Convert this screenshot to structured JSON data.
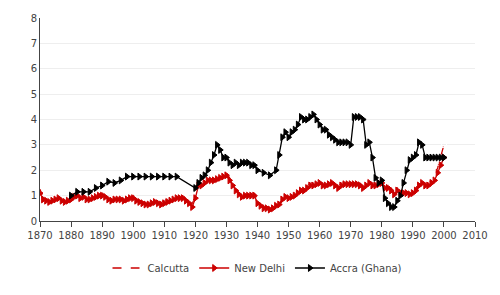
{
  "chart_data": {
    "type": "line",
    "series": [
      {
        "name": "Calcutta",
        "color": "#cc0000",
        "marker": "square-open",
        "line_style": "dash",
        "x": [
          1870,
          1871,
          1872,
          1873,
          1874,
          1875,
          1876,
          1877,
          1878,
          1879,
          1880,
          1881,
          1882,
          1883,
          1884,
          1885,
          1886,
          1887,
          1888,
          1889,
          1890,
          1891,
          1892,
          1893,
          1894,
          1895,
          1896,
          1897,
          1898,
          1899,
          1900,
          1901,
          1902,
          1903,
          1904,
          1905,
          1906,
          1907,
          1908,
          1909,
          1910,
          1911,
          1912,
          1913,
          1914,
          1915,
          1916,
          1917,
          1918,
          1919,
          1920,
          1921,
          1922,
          1923,
          1924,
          1925,
          1926,
          1927,
          1928,
          1929,
          1930,
          1931,
          1932,
          1933,
          1934,
          1935,
          1936,
          1937,
          1938,
          1939,
          1940,
          1941,
          1942,
          1943,
          1944,
          1945,
          1946,
          1947,
          1948,
          1949,
          1950,
          1951,
          1952,
          1953,
          1954,
          1955,
          1956,
          1957,
          1958,
          1959,
          1960,
          1961,
          1962,
          1963,
          1964,
          1965,
          1966,
          1967,
          1968,
          1969,
          1970,
          1971,
          1972,
          1973,
          1974,
          1975,
          1976,
          1977,
          1978,
          1979,
          1980,
          1981,
          1982,
          1983,
          1984,
          1985,
          1986,
          1987,
          1988,
          1989,
          1990,
          1991,
          1992,
          1993,
          1994,
          1995,
          1996,
          1997,
          1998,
          1999,
          2000
        ],
        "values": [
          1.25,
          0.9,
          0.85,
          0.8,
          0.85,
          0.9,
          0.95,
          0.85,
          0.8,
          0.85,
          0.9,
          1.0,
          1.05,
          0.95,
          1.0,
          0.85,
          0.9,
          1.0,
          0.95,
          1.05,
          1.1,
          1.0,
          0.95,
          0.85,
          0.9,
          0.9,
          0.95,
          0.85,
          0.9,
          0.95,
          1.0,
          0.85,
          0.85,
          0.8,
          0.7,
          0.75,
          0.8,
          0.85,
          0.8,
          0.75,
          0.8,
          0.85,
          0.9,
          0.95,
          1.0,
          1.0,
          1.0,
          0.9,
          0.8,
          0.7,
          1.0,
          1.5,
          1.5,
          1.6,
          1.7,
          1.7,
          1.7,
          1.7,
          1.75,
          1.8,
          1.9,
          1.7,
          1.5,
          1.3,
          1.1,
          1.0,
          1.1,
          1.1,
          1.1,
          1.1,
          0.85,
          0.75,
          0.6,
          0.55,
          0.5,
          0.55,
          0.65,
          0.7,
          0.9,
          1.0,
          1.0,
          1.0,
          1.1,
          1.2,
          1.3,
          1.3,
          1.4,
          1.5,
          1.5,
          1.55,
          1.6,
          1.5,
          1.5,
          1.5,
          1.5,
          1.5,
          1.4,
          1.5,
          1.5,
          1.5,
          1.5,
          1.5,
          1.55,
          1.5,
          1.4,
          1.5,
          1.6,
          1.5,
          1.5,
          1.55,
          1.6,
          1.4,
          1.4,
          1.3,
          1.1,
          1.3,
          1.2,
          1.2,
          1.2,
          1.1,
          1.2,
          1.3,
          1.5,
          1.6,
          1.5,
          1.5,
          1.6,
          1.7,
          2.1,
          2.5,
          3.0
        ]
      },
      {
        "name": "New Delhi",
        "color": "#cc0000",
        "marker": "triangle-right",
        "line_style": "solid",
        "x": [
          1870,
          1871,
          1872,
          1873,
          1874,
          1875,
          1876,
          1877,
          1878,
          1879,
          1880,
          1881,
          1882,
          1883,
          1884,
          1885,
          1886,
          1887,
          1888,
          1889,
          1890,
          1891,
          1892,
          1893,
          1894,
          1895,
          1896,
          1897,
          1898,
          1899,
          1900,
          1901,
          1902,
          1903,
          1904,
          1905,
          1906,
          1907,
          1908,
          1909,
          1910,
          1911,
          1912,
          1913,
          1914,
          1915,
          1916,
          1917,
          1918,
          1919,
          1920,
          1921,
          1922,
          1923,
          1924,
          1925,
          1926,
          1927,
          1928,
          1929,
          1930,
          1931,
          1932,
          1933,
          1934,
          1935,
          1936,
          1937,
          1938,
          1939,
          1940,
          1941,
          1942,
          1943,
          1944,
          1945,
          1946,
          1947,
          1948,
          1949,
          1950,
          1951,
          1952,
          1953,
          1954,
          1955,
          1956,
          1957,
          1958,
          1959,
          1960,
          1961,
          1962,
          1963,
          1964,
          1965,
          1966,
          1967,
          1968,
          1969,
          1970,
          1971,
          1972,
          1973,
          1974,
          1975,
          1976,
          1977,
          1978,
          1979,
          1980,
          1981,
          1982,
          1983,
          1984,
          1985,
          1986,
          1987,
          1988,
          1989,
          1990,
          1991,
          1992,
          1993,
          1994,
          1995,
          1996,
          1997,
          1998,
          1999,
          2000
        ],
        "values": [
          1.1,
          0.85,
          0.8,
          0.75,
          0.8,
          0.85,
          0.9,
          0.8,
          0.75,
          0.8,
          0.85,
          0.95,
          1.0,
          0.9,
          0.95,
          0.85,
          0.85,
          0.9,
          0.95,
          1.0,
          1.0,
          0.95,
          0.85,
          0.8,
          0.85,
          0.85,
          0.85,
          0.8,
          0.85,
          0.9,
          0.9,
          0.8,
          0.75,
          0.7,
          0.65,
          0.65,
          0.7,
          0.75,
          0.7,
          0.65,
          0.7,
          0.75,
          0.8,
          0.85,
          0.9,
          0.9,
          0.9,
          0.8,
          0.7,
          0.55,
          0.9,
          1.4,
          1.4,
          1.5,
          1.6,
          1.6,
          1.6,
          1.65,
          1.7,
          1.75,
          1.8,
          1.6,
          1.4,
          1.2,
          1.05,
          0.95,
          1.0,
          1.0,
          1.0,
          1.0,
          0.7,
          0.6,
          0.5,
          0.5,
          0.45,
          0.5,
          0.6,
          0.65,
          0.85,
          0.95,
          0.9,
          0.95,
          1.0,
          1.1,
          1.2,
          1.2,
          1.3,
          1.4,
          1.4,
          1.45,
          1.5,
          1.4,
          1.4,
          1.45,
          1.5,
          1.4,
          1.3,
          1.4,
          1.45,
          1.45,
          1.45,
          1.45,
          1.45,
          1.4,
          1.3,
          1.4,
          1.5,
          1.4,
          1.4,
          1.45,
          1.5,
          1.3,
          1.3,
          1.2,
          1.05,
          1.2,
          1.1,
          1.1,
          1.1,
          1.05,
          1.1,
          1.2,
          1.4,
          1.5,
          1.4,
          1.4,
          1.5,
          1.6,
          1.9,
          2.2,
          2.5
        ]
      },
      {
        "name": "Accra (Ghana)",
        "color": "#000000",
        "marker": "triangle-right",
        "line_style": "solid",
        "x": [
          1880,
          1882,
          1884,
          1886,
          1888,
          1890,
          1892,
          1894,
          1896,
          1898,
          1900,
          1902,
          1904,
          1906,
          1908,
          1910,
          1912,
          1914,
          1920,
          1921,
          1922,
          1923,
          1924,
          1925,
          1926,
          1927,
          1928,
          1929,
          1930,
          1931,
          1932,
          1933,
          1934,
          1935,
          1936,
          1937,
          1938,
          1939,
          1940,
          1942,
          1944,
          1946,
          1947,
          1948,
          1949,
          1950,
          1951,
          1952,
          1953,
          1954,
          1955,
          1956,
          1957,
          1958,
          1959,
          1960,
          1961,
          1962,
          1963,
          1964,
          1965,
          1966,
          1967,
          1968,
          1969,
          1970,
          1971,
          1972,
          1973,
          1974,
          1975,
          1976,
          1977,
          1978,
          1979,
          1980,
          1981,
          1982,
          1983,
          1984,
          1985,
          1986,
          1987,
          1988,
          1989,
          1990,
          1991,
          1992,
          1993,
          1994,
          1995,
          1996,
          1997,
          1998,
          1999,
          2000
        ],
        "values": [
          1.0,
          1.15,
          1.15,
          1.15,
          1.3,
          1.4,
          1.55,
          1.5,
          1.6,
          1.75,
          1.75,
          1.75,
          1.75,
          1.75,
          1.75,
          1.75,
          1.75,
          1.75,
          1.3,
          1.5,
          1.7,
          1.8,
          2.0,
          2.3,
          2.6,
          3.0,
          2.8,
          2.5,
          2.5,
          2.3,
          2.2,
          2.3,
          2.2,
          2.3,
          2.3,
          2.3,
          2.2,
          2.2,
          2.0,
          1.9,
          1.8,
          2.0,
          2.6,
          3.3,
          3.5,
          3.3,
          3.5,
          3.6,
          3.8,
          4.1,
          4.0,
          4.0,
          4.1,
          4.2,
          4.0,
          3.8,
          3.6,
          3.6,
          3.4,
          3.3,
          3.2,
          3.1,
          3.1,
          3.1,
          3.1,
          3.0,
          4.1,
          4.1,
          4.1,
          4.0,
          3.0,
          3.1,
          2.5,
          1.7,
          1.5,
          1.6,
          0.9,
          0.7,
          0.55,
          0.55,
          0.8,
          1.0,
          1.5,
          2.0,
          2.4,
          2.5,
          2.6,
          3.1,
          3.0,
          2.5,
          2.5,
          2.5,
          2.5,
          2.5,
          2.5,
          2.5
        ]
      }
    ],
    "xlim": [
      1870,
      2010
    ],
    "xticks": [
      1870,
      1880,
      1890,
      1900,
      1910,
      1920,
      1930,
      1940,
      1950,
      1960,
      1970,
      1980,
      1990,
      2000,
      2010
    ],
    "ylim": [
      0,
      8
    ],
    "yticks": [
      0,
      1,
      2,
      3,
      4,
      5,
      6,
      7,
      8
    ],
    "grid": "y",
    "legend": "bottom"
  }
}
